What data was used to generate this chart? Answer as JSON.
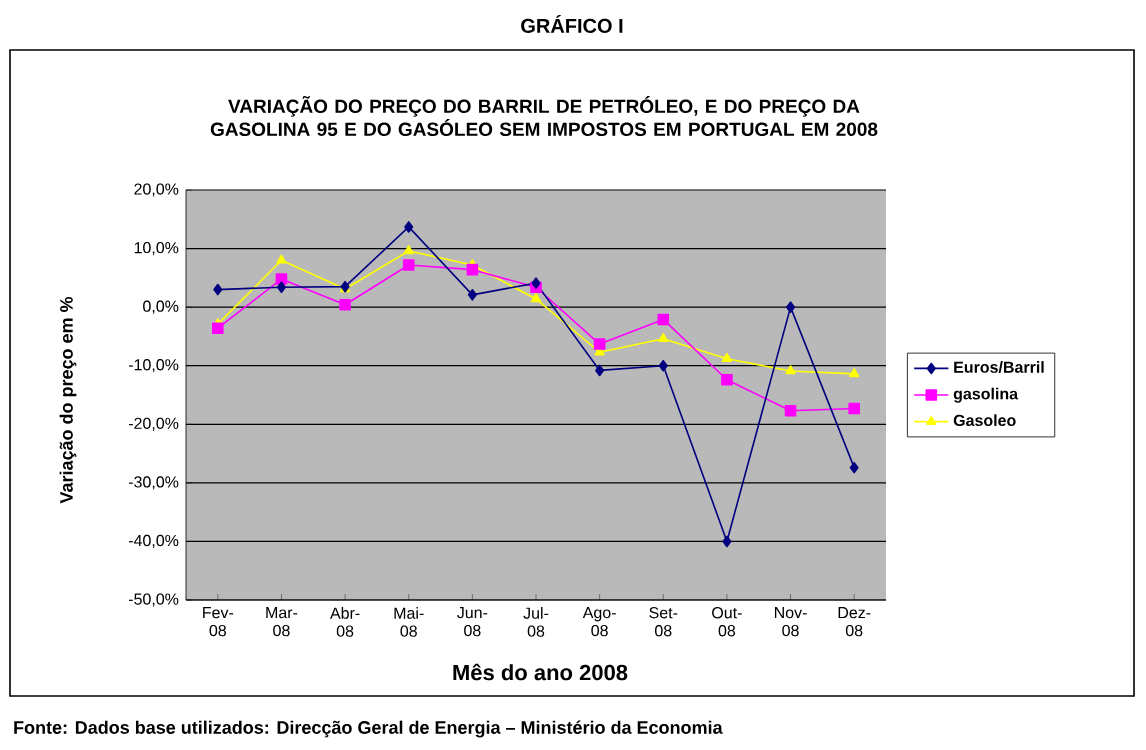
{
  "chart_data": {
    "type": "line",
    "title": "GRÁFICO I",
    "subtitle": "VARIAÇÃO DO PREÇO DO BARRIL DE PETRÓLEO, E DO PREÇO DA GASOLINA 95 E DO GASÓLEO SEM IMPOSTOS EM PORTUGAL EM 2008",
    "xlabel": "Mês do ano 2008",
    "ylabel": "Variação do preço em %",
    "annotations": [
      "Fonte: Dados base utilizados: Direcção Geral de Energia – Ministério da Economia"
    ],
    "categories": [
      "Fev-08",
      "Mar-08",
      "Abr-08",
      "Mai-08",
      "Jun-08",
      "Jul-08",
      "Ago-08",
      "Set-08",
      "Out-08",
      "Nov-08",
      "Dez-08"
    ],
    "series": [
      {
        "name": "Euros/Barril",
        "color": "#000080",
        "marker": "diamond",
        "values": [
          3.0,
          3.4,
          3.5,
          13.7,
          2.1,
          4.1,
          -10.8,
          -10.0,
          -40.0,
          0.0,
          -27.4
        ]
      },
      {
        "name": "gasolina",
        "color": "#ff00ff",
        "marker": "square",
        "values": [
          -3.6,
          4.8,
          0.4,
          7.2,
          6.4,
          3.4,
          -6.3,
          -2.1,
          -12.4,
          -17.7,
          -17.3
        ]
      },
      {
        "name": "Gasoleo",
        "color": "#ffff00",
        "marker": "triangle",
        "values": [
          -2.9,
          8.0,
          3.1,
          9.6,
          7.2,
          1.4,
          -7.7,
          -5.4,
          -8.8,
          -10.9,
          -11.4
        ]
      }
    ],
    "ylim": [
      -50,
      20
    ],
    "yticks": [
      {
        "value": -50,
        "label": "-50,0%"
      },
      {
        "value": -40,
        "label": "-40,0%"
      },
      {
        "value": -30,
        "label": "-30,0%"
      },
      {
        "value": -20,
        "label": "-20,0%"
      },
      {
        "value": -10,
        "label": "-10,0%"
      },
      {
        "value": 0,
        "label": "0,0%"
      },
      {
        "value": 10,
        "label": "10,0%"
      },
      {
        "value": 20,
        "label": "20,0%"
      }
    ],
    "grid": "y",
    "legend": "right"
  }
}
